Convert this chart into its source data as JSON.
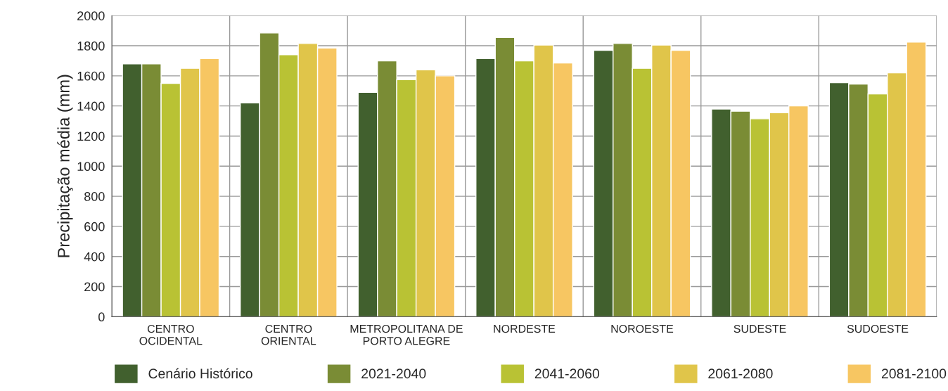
{
  "chart_data": {
    "type": "bar",
    "ylabel": "Precipitação média (mm)",
    "categories": [
      "CENTRO\nOCIDENTAL",
      "CENTRO\nORIENTAL",
      "METROPOLITANA DE\nPORTO ALEGRE",
      "NORDESTE",
      "NOROESTE",
      "SUDESTE",
      "SUDOESTE"
    ],
    "series": [
      {
        "name": "Cenário Histórico",
        "color": "#41602e",
        "values": [
          1680,
          1420,
          1490,
          1715,
          1770,
          1380,
          1555
        ]
      },
      {
        "name": "2021-2040",
        "color": "#7a8c35",
        "values": [
          1680,
          1885,
          1700,
          1855,
          1815,
          1365,
          1545
        ]
      },
      {
        "name": "2041-2060",
        "color": "#b9c234",
        "values": [
          1550,
          1740,
          1575,
          1700,
          1650,
          1315,
          1480
        ]
      },
      {
        "name": "2061-2080",
        "color": "#e0c54a",
        "values": [
          1650,
          1815,
          1640,
          1805,
          1805,
          1355,
          1620
        ]
      },
      {
        "name": "2081-2100",
        "color": "#f7c662",
        "values": [
          1715,
          1785,
          1600,
          1685,
          1770,
          1400,
          1825
        ]
      }
    ],
    "ylim": [
      0,
      2000
    ],
    "yticks": [
      0,
      200,
      400,
      600,
      800,
      1000,
      1200,
      1400,
      1600,
      1800,
      2000
    ],
    "grid": true,
    "legend": "bottom"
  }
}
